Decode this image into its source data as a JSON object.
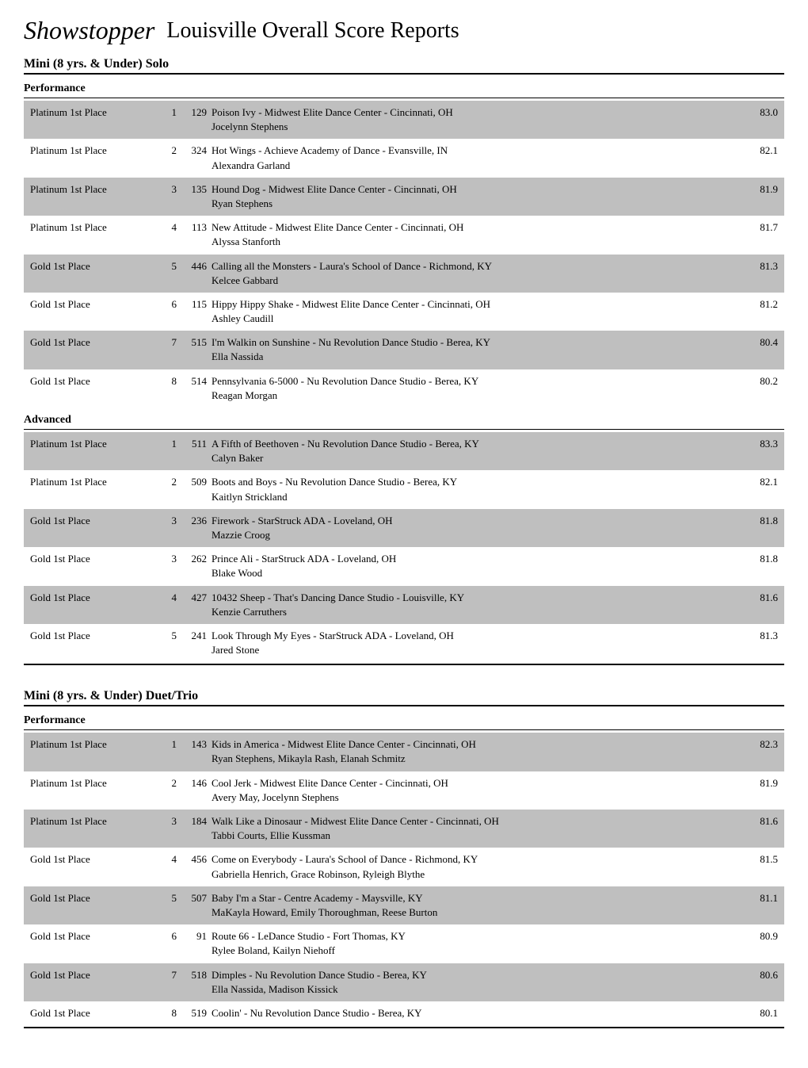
{
  "header": {
    "logo_text": "Showstopper",
    "page_title": "Louisville Overall Score Reports"
  },
  "categories": [
    {
      "title": "Mini (8 yrs. & Under) Solo",
      "subcategories": [
        {
          "name": "Performance",
          "rows": [
            {
              "award": "Platinum 1st Place",
              "rank": "1",
              "entry": "129",
              "title": "Poison Ivy - Midwest Elite Dance Center - Cincinnati, OH",
              "performers": "Jocelynn Stephens",
              "score": "83.0",
              "shaded": true
            },
            {
              "award": "Platinum 1st Place",
              "rank": "2",
              "entry": "324",
              "title": "Hot Wings - Achieve Academy of Dance - Evansville, IN",
              "performers": "Alexandra Garland",
              "score": "82.1",
              "shaded": false
            },
            {
              "award": "Platinum 1st Place",
              "rank": "3",
              "entry": "135",
              "title": "Hound Dog - Midwest Elite Dance Center - Cincinnati, OH",
              "performers": "Ryan Stephens",
              "score": "81.9",
              "shaded": true
            },
            {
              "award": "Platinum 1st Place",
              "rank": "4",
              "entry": "113",
              "title": "New Attitude - Midwest Elite Dance Center - Cincinnati, OH",
              "performers": "Alyssa Stanforth",
              "score": "81.7",
              "shaded": false
            },
            {
              "award": "Gold 1st Place",
              "rank": "5",
              "entry": "446",
              "title": "Calling all the Monsters - Laura's School of Dance - Richmond, KY",
              "performers": "Kelcee Gabbard",
              "score": "81.3",
              "shaded": true
            },
            {
              "award": "Gold 1st Place",
              "rank": "6",
              "entry": "115",
              "title": "Hippy Hippy Shake - Midwest Elite Dance Center - Cincinnati, OH",
              "performers": "Ashley Caudill",
              "score": "81.2",
              "shaded": false
            },
            {
              "award": "Gold 1st Place",
              "rank": "7",
              "entry": "515",
              "title": "I'm Walkin on Sunshine - Nu Revolution Dance Studio - Berea, KY",
              "performers": "Ella Nassida",
              "score": "80.4",
              "shaded": true
            },
            {
              "award": "Gold 1st Place",
              "rank": "8",
              "entry": "514",
              "title": "Pennsylvania 6-5000 - Nu Revolution Dance Studio - Berea, KY",
              "performers": "Reagan Morgan",
              "score": "80.2",
              "shaded": false
            }
          ]
        },
        {
          "name": "Advanced",
          "rows": [
            {
              "award": "Platinum 1st Place",
              "rank": "1",
              "entry": "511",
              "title": "A Fifth of Beethoven - Nu Revolution Dance Studio - Berea, KY",
              "performers": "Calyn Baker",
              "score": "83.3",
              "shaded": true
            },
            {
              "award": "Platinum 1st Place",
              "rank": "2",
              "entry": "509",
              "title": "Boots and Boys - Nu Revolution Dance Studio - Berea, KY",
              "performers": "Kaitlyn Strickland",
              "score": "82.1",
              "shaded": false
            },
            {
              "award": "Gold 1st Place",
              "rank": "3",
              "entry": "236",
              "title": "Firework - StarStruck ADA - Loveland, OH",
              "performers": "Mazzie Croog",
              "score": "81.8",
              "shaded": true
            },
            {
              "award": "Gold 1st Place",
              "rank": "3",
              "entry": "262",
              "title": "Prince Ali - StarStruck ADA - Loveland, OH",
              "performers": "Blake Wood",
              "score": "81.8",
              "shaded": false
            },
            {
              "award": "Gold 1st Place",
              "rank": "4",
              "entry": "427",
              "title": "10432 Sheep - That's Dancing Dance Studio - Louisville, KY",
              "performers": "Kenzie Carruthers",
              "score": "81.6",
              "shaded": true
            },
            {
              "award": "Gold 1st Place",
              "rank": "5",
              "entry": "241",
              "title": "Look Through My Eyes - StarStruck ADA - Loveland, OH",
              "performers": "Jared Stone",
              "score": "81.3",
              "shaded": false
            }
          ]
        }
      ]
    },
    {
      "title": "Mini (8 yrs. & Under) Duet/Trio",
      "subcategories": [
        {
          "name": "Performance",
          "rows": [
            {
              "award": "Platinum 1st Place",
              "rank": "1",
              "entry": "143",
              "title": "Kids in America - Midwest Elite Dance Center - Cincinnati, OH",
              "performers": "Ryan Stephens, Mikayla Rash, Elanah Schmitz",
              "score": "82.3",
              "shaded": true
            },
            {
              "award": "Platinum 1st Place",
              "rank": "2",
              "entry": "146",
              "title": "Cool Jerk - Midwest Elite Dance Center - Cincinnati, OH",
              "performers": "Avery May, Jocelynn Stephens",
              "score": "81.9",
              "shaded": false
            },
            {
              "award": "Platinum 1st Place",
              "rank": "3",
              "entry": "184",
              "title": "Walk Like a Dinosaur - Midwest Elite Dance Center - Cincinnati, OH",
              "performers": "Tabbi Courts, Ellie Kussman",
              "score": "81.6",
              "shaded": true
            },
            {
              "award": "Gold 1st Place",
              "rank": "4",
              "entry": "456",
              "title": "Come on Everybody - Laura's School of Dance - Richmond, KY",
              "performers": "Gabriella Henrich, Grace Robinson, Ryleigh Blythe",
              "score": "81.5",
              "shaded": false
            },
            {
              "award": "Gold 1st Place",
              "rank": "5",
              "entry": "507",
              "title": "Baby I'm a Star - Centre Academy - Maysville, KY",
              "performers": "MaKayla Howard, Emily Thoroughman, Reese Burton",
              "score": "81.1",
              "shaded": true
            },
            {
              "award": "Gold 1st Place",
              "rank": "6",
              "entry": "91",
              "title": "Route 66 - LeDance Studio - Fort Thomas, KY",
              "performers": "Rylee Boland, Kailyn Niehoff",
              "score": "80.9",
              "shaded": false
            },
            {
              "award": "Gold 1st Place",
              "rank": "7",
              "entry": "518",
              "title": "Dimples - Nu Revolution Dance Studio - Berea, KY",
              "performers": "Ella Nassida, Madison Kissick",
              "score": "80.6",
              "shaded": true
            },
            {
              "award": "Gold 1st Place",
              "rank": "8",
              "entry": "519",
              "title": "Coolin' - Nu Revolution Dance Studio - Berea, KY",
              "performers": "",
              "score": "80.1",
              "shaded": false
            }
          ]
        }
      ]
    }
  ]
}
